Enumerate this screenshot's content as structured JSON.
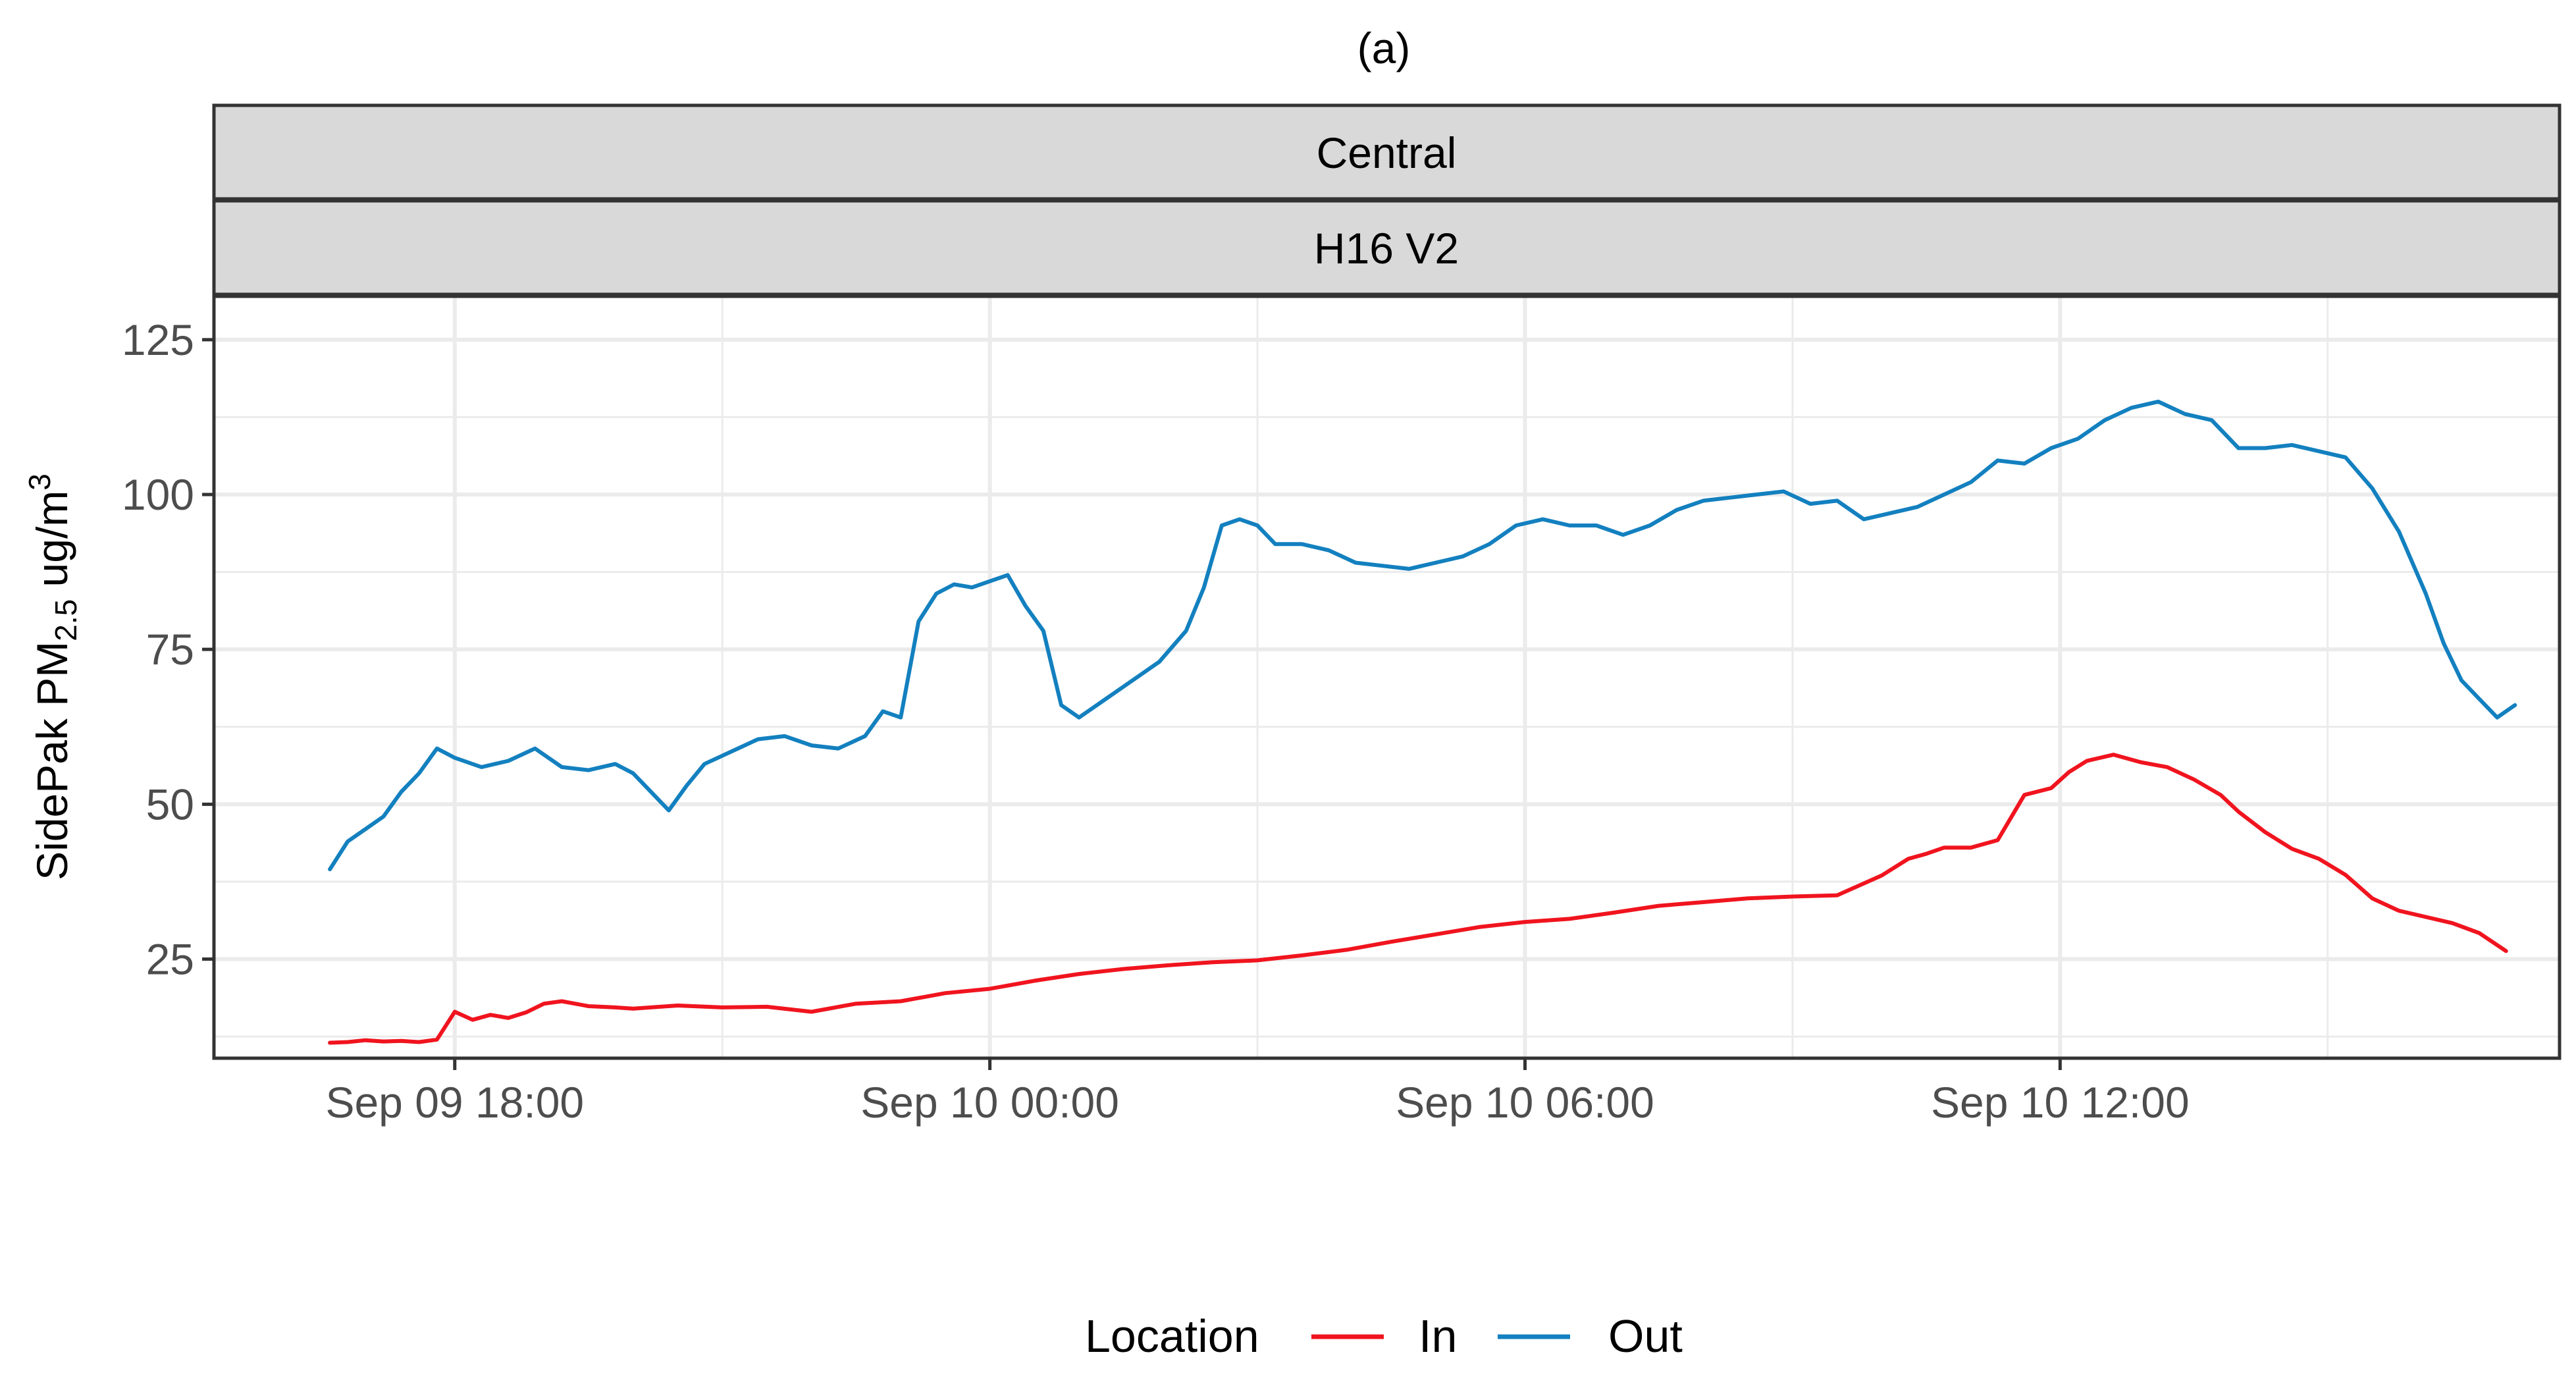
{
  "chart_data": {
    "type": "line",
    "title": "(a)",
    "facet_strips": [
      "Central",
      "H16 V2"
    ],
    "ylabel": {
      "main": "SidePak PM",
      "sub": "2.5",
      "unit": " ug/m",
      "sup": "3"
    },
    "xlabel": "",
    "x_unit": "hours",
    "x_ticks": [
      {
        "x": 18,
        "label": "Sep 09 18:00"
      },
      {
        "x": 24,
        "label": "Sep 10 00:00"
      },
      {
        "x": 30,
        "label": "Sep 10 06:00"
      },
      {
        "x": 36,
        "label": "Sep 10 12:00"
      }
    ],
    "xlim": [
      15.3,
      41.6
    ],
    "y_ticks": [
      25,
      50,
      75,
      100,
      125
    ],
    "ylim": [
      9,
      132
    ],
    "grid": true,
    "legend": {
      "title": "Location",
      "position": "bottom"
    },
    "series": [
      {
        "name": "In",
        "color": "#f0141e",
        "x": [
          16.6,
          16.8,
          17.0,
          17.2,
          17.4,
          17.6,
          17.8,
          18.0,
          18.2,
          18.4,
          18.6,
          18.8,
          19.0,
          19.2,
          19.5,
          19.8,
          20.0,
          20.5,
          21.0,
          21.5,
          22.0,
          22.5,
          23.0,
          23.5,
          24.0,
          24.5,
          25.0,
          25.5,
          26.0,
          26.5,
          27.0,
          27.5,
          28.0,
          28.5,
          29.0,
          29.5,
          30.0,
          30.5,
          31.0,
          31.5,
          32.0,
          32.5,
          33.0,
          33.5,
          34.0,
          34.3,
          34.5,
          34.7,
          35.0,
          35.3,
          35.6,
          35.9,
          36.1,
          36.3,
          36.6,
          36.9,
          37.2,
          37.5,
          37.8,
          38.0,
          38.3,
          38.6,
          38.9,
          39.2,
          39.5,
          39.8,
          40.1,
          40.4,
          40.7,
          41.0
        ],
        "y": [
          11.5,
          11.6,
          11.9,
          11.7,
          11.8,
          11.6,
          12.0,
          16.5,
          15.2,
          16.0,
          15.5,
          16.4,
          17.8,
          18.2,
          17.4,
          17.2,
          17.0,
          17.5,
          17.2,
          17.3,
          16.5,
          17.8,
          18.2,
          19.5,
          20.2,
          21.5,
          22.6,
          23.4,
          24.0,
          24.5,
          24.8,
          25.6,
          26.5,
          27.8,
          29.0,
          30.2,
          31.0,
          31.5,
          32.5,
          33.6,
          34.2,
          34.8,
          35.1,
          35.3,
          38.5,
          41.2,
          42.0,
          43.0,
          43.0,
          44.2,
          51.5,
          52.6,
          55.2,
          57.0,
          58.0,
          56.8,
          56.0,
          54.0,
          51.5,
          48.8,
          45.5,
          42.8,
          41.2,
          38.6,
          34.8,
          32.8,
          31.8,
          30.8,
          29.2,
          26.3
        ]
      },
      {
        "name": "Out",
        "color": "#1380bf",
        "x": [
          16.6,
          16.8,
          17.0,
          17.2,
          17.4,
          17.6,
          17.8,
          18.0,
          18.3,
          18.6,
          18.9,
          19.2,
          19.5,
          19.8,
          20.0,
          20.2,
          20.4,
          20.6,
          20.8,
          21.1,
          21.4,
          21.7,
          22.0,
          22.3,
          22.6,
          22.8,
          23.0,
          23.2,
          23.4,
          23.6,
          23.8,
          24.0,
          24.2,
          24.4,
          24.6,
          24.8,
          25.0,
          25.3,
          25.6,
          25.9,
          26.2,
          26.4,
          26.6,
          26.8,
          27.0,
          27.2,
          27.5,
          27.8,
          28.1,
          28.4,
          28.7,
          29.0,
          29.3,
          29.6,
          29.9,
          30.2,
          30.5,
          30.8,
          31.1,
          31.4,
          31.7,
          32.0,
          32.3,
          32.6,
          32.9,
          33.2,
          33.5,
          33.8,
          34.1,
          34.4,
          34.7,
          35.0,
          35.3,
          35.6,
          35.9,
          36.2,
          36.5,
          36.8,
          37.1,
          37.4,
          37.7,
          38.0,
          38.3,
          38.6,
          38.9,
          39.2,
          39.5,
          39.8,
          40.1,
          40.3,
          40.5,
          40.7,
          40.9,
          41.1
        ],
        "y": [
          39.5,
          44.0,
          46.0,
          48.0,
          52.0,
          55.0,
          59.0,
          57.5,
          56.0,
          57.0,
          59.0,
          56.0,
          55.5,
          56.5,
          55.0,
          52.0,
          49.0,
          53.0,
          56.5,
          58.5,
          60.5,
          61.0,
          59.5,
          59.0,
          61.0,
          65.0,
          64.0,
          79.5,
          84.0,
          85.5,
          85.0,
          86.0,
          87.0,
          82.0,
          78.0,
          66.0,
          64.0,
          67.0,
          70.0,
          73.0,
          78.0,
          85.0,
          95.0,
          96.0,
          95.0,
          92.0,
          92.0,
          91.0,
          89.0,
          88.5,
          88.0,
          89.0,
          90.0,
          92.0,
          95.0,
          96.0,
          95.0,
          95.0,
          93.5,
          95.0,
          97.5,
          99.0,
          99.5,
          100.0,
          100.5,
          98.5,
          99.0,
          96.0,
          97.0,
          98.0,
          100.0,
          102.0,
          105.5,
          105.0,
          107.5,
          109.0,
          112.0,
          114.0,
          115.0,
          113.0,
          112.0,
          107.5,
          107.5,
          108.0,
          107.0,
          106.0,
          101.0,
          94.0,
          84.0,
          76.0,
          70.0,
          67.0,
          64.0,
          66.0
        ]
      }
    ]
  }
}
